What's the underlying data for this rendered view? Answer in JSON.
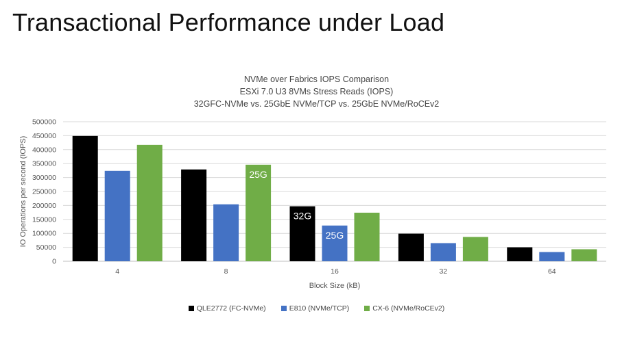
{
  "slide_title": "Transactional Performance under Load",
  "chart_data": {
    "type": "bar",
    "title": [
      "NVMe over Fabrics IOPS Comparison",
      "ESXi 7.0 U3 8VMs Stress Reads (IOPS)",
      "32GFC-NVMe vs. 25GbE NVMe/TCP vs. 25GbE NVMe/RoCEv2"
    ],
    "xlabel": "Block Size (kB)",
    "ylabel": "IO Operations per second (IOPS)",
    "ylim": [
      0,
      500000
    ],
    "yticks": [
      "0",
      "50000",
      "100000",
      "150000",
      "200000",
      "250000",
      "300000",
      "350000",
      "400000",
      "450000",
      "500000"
    ],
    "categories": [
      "4",
      "8",
      "16",
      "32",
      "64"
    ],
    "grid": true,
    "legend_position": "bottom",
    "series": [
      {
        "name": "QLE2772 (FC-NVMe)",
        "color": "#000000",
        "values": [
          449000,
          329000,
          197000,
          99000,
          50000
        ]
      },
      {
        "name": "E810 (NVMe/TCP)",
        "color": "#4472C4",
        "values": [
          324000,
          204000,
          128000,
          65000,
          33000
        ]
      },
      {
        "name": "CX-6 (NVMe/RoCEv2)",
        "color": "#70AD47",
        "values": [
          417000,
          346000,
          174000,
          87000,
          43000
        ]
      }
    ],
    "annotations": [
      {
        "text": "25G",
        "category": "8",
        "series": 2
      },
      {
        "text": "32G",
        "category": "16",
        "series": 0
      },
      {
        "text": "25G",
        "category": "16",
        "series": 1
      }
    ]
  }
}
